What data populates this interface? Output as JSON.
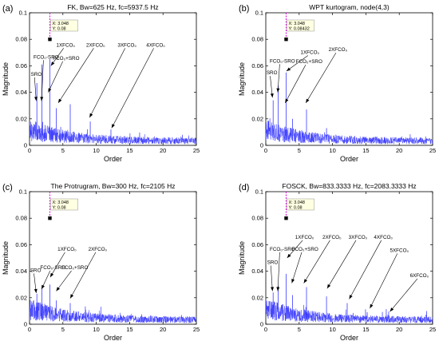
{
  "chart_data": [
    {
      "type": "line",
      "panel_label": "(a)",
      "title": "FK, Bw=625 Hz, fc=5937.5 Hz",
      "xlabel": "Order",
      "ylabel": "Magnitude",
      "xlim": [
        0,
        25
      ],
      "ylim": [
        0,
        0.1
      ],
      "xticks": [
        "0",
        "5",
        "10",
        "15",
        "20",
        "25"
      ],
      "yticks": [
        "0",
        "0.02",
        "0.04",
        "0.06",
        "0.08",
        "0.1"
      ],
      "series_color": "#3b3bff",
      "peaks": [
        {
          "x": 1.1,
          "y": 0.047
        },
        {
          "x": 1.85,
          "y": 0.061
        },
        {
          "x": 3.05,
          "y": 0.065
        },
        {
          "x": 4.0,
          "y": 0.028
        },
        {
          "x": 6.1,
          "y": 0.031
        },
        {
          "x": 9.1,
          "y": 0.018
        },
        {
          "x": 12.2,
          "y": 0.012
        }
      ],
      "cursor": {
        "x": 3.048,
        "y": 0.08,
        "text_x": "X: 3.048",
        "text_y": "Y: 0.08"
      },
      "annotations": [
        {
          "text": "SRO",
          "x": 0.2,
          "y": 0.0525,
          "ax": 1.0,
          "ay": 0.0335
        },
        {
          "text": "FCO₀-SRO",
          "x": 0.6,
          "y": 0.0655,
          "ax": 1.8,
          "ay": 0.0335
        },
        {
          "text": "1XFCO₀",
          "x": 4.0,
          "y": 0.0745,
          "ax": 3.2,
          "ay": 0.06
        },
        {
          "text": "FCO₀+SRO",
          "x": 3.5,
          "y": 0.0645,
          "ax": 2.8,
          "ay": 0.04
        },
        {
          "text": "2XFCO₀",
          "x": 8.5,
          "y": 0.0745,
          "ax": 4.3,
          "ay": 0.032
        },
        {
          "text": "3XFCO₀",
          "x": 13.2,
          "y": 0.0745,
          "ax": 9.0,
          "ay": 0.021
        },
        {
          "text": "4XFCO₀",
          "x": 17.5,
          "y": 0.0745,
          "ax": 12.3,
          "ay": 0.013
        }
      ]
    },
    {
      "type": "line",
      "panel_label": "(b)",
      "title": "WPT kurtogram, node(4,3)",
      "xlabel": "Order",
      "ylabel": "Magnitude",
      "xlim": [
        0,
        25
      ],
      "ylim": [
        0,
        0.1
      ],
      "xticks": [
        "0",
        "5",
        "10",
        "15",
        "20",
        "25"
      ],
      "yticks": [
        "0",
        "0.02",
        "0.04",
        "0.06",
        "0.08",
        "0.1"
      ],
      "series_color": "#3b3bff",
      "peaks": [
        {
          "x": 1.1,
          "y": 0.034
        },
        {
          "x": 1.85,
          "y": 0.045
        },
        {
          "x": 3.05,
          "y": 0.055
        },
        {
          "x": 4.0,
          "y": 0.02
        },
        {
          "x": 6.1,
          "y": 0.027
        },
        {
          "x": 9.1,
          "y": 0.013
        }
      ],
      "cursor": {
        "x": 3.048,
        "y": 0.08,
        "text_x": "X: 3.048",
        "text_y": "Y: 0.08432"
      },
      "annotations": [
        {
          "text": "SRO",
          "x": 0.1,
          "y": 0.0535,
          "ax": 1.0,
          "ay": 0.036
        },
        {
          "text": "FCO₀-SRO",
          "x": 0.6,
          "y": 0.0625,
          "ax": 1.8,
          "ay": 0.04
        },
        {
          "text": "1XFCO₀",
          "x": 5.2,
          "y": 0.069,
          "ax": 3.1,
          "ay": 0.056
        },
        {
          "text": "FCO₀+SRO",
          "x": 4.5,
          "y": 0.062,
          "ax": 2.9,
          "ay": 0.032
        },
        {
          "text": "2XFCO₀",
          "x": 9.4,
          "y": 0.071,
          "ax": 6.0,
          "ay": 0.032
        }
      ]
    },
    {
      "type": "line",
      "panel_label": "(c)",
      "title": "The Protrugram, Bw=300 Hz, fc=2105 Hz",
      "xlabel": "Order",
      "ylabel": "Magnitude",
      "xlim": [
        0,
        25
      ],
      "ylim": [
        0,
        0.1
      ],
      "xticks": [
        "0",
        "5",
        "10",
        "15",
        "20",
        "25"
      ],
      "yticks": [
        "0",
        "0.02",
        "0.04",
        "0.06",
        "0.08",
        "0.1"
      ],
      "series_color": "#3b3bff",
      "peaks": [
        {
          "x": 1.1,
          "y": 0.023
        },
        {
          "x": 1.85,
          "y": 0.028
        },
        {
          "x": 3.05,
          "y": 0.03
        },
        {
          "x": 4.0,
          "y": 0.018
        },
        {
          "x": 6.1,
          "y": 0.016
        }
      ],
      "cursor": {
        "x": 3.048,
        "y": 0.08,
        "text_x": "X: 3.048",
        "text_y": "Y: 0.08"
      },
      "annotations": [
        {
          "text": "SRO",
          "x": 0.1,
          "y": 0.0395,
          "ax": 1.0,
          "ay": 0.0235
        },
        {
          "text": "FCO₀-SRO",
          "x": 1.6,
          "y": 0.0415,
          "ax": 1.8,
          "ay": 0.0265
        },
        {
          "text": "1XFCO₀",
          "x": 4.2,
          "y": 0.0555,
          "ax": 3.1,
          "ay": 0.0355
        },
        {
          "text": "FCO₀+SRO",
          "x": 4.8,
          "y": 0.0415,
          "ax": 4.0,
          "ay": 0.025
        },
        {
          "text": "2XFCO₀",
          "x": 8.8,
          "y": 0.0555,
          "ax": 6.1,
          "ay": 0.0195
        }
      ]
    },
    {
      "type": "line",
      "panel_label": "(d)",
      "title": "FOSCK, Bw=833.3333 Hz, fc=2083.3333 Hz",
      "xlabel": "Order",
      "ylabel": "Magnitude",
      "xlim": [
        0,
        25
      ],
      "ylim": [
        0,
        0.1
      ],
      "xticks": [
        "0",
        "5",
        "10",
        "15",
        "20",
        "25"
      ],
      "yticks": [
        "0",
        "0.02",
        "0.04",
        "0.06",
        "0.08",
        "0.1"
      ],
      "series_color": "#3b3bff",
      "peaks": [
        {
          "x": 1.1,
          "y": 0.024
        },
        {
          "x": 1.85,
          "y": 0.029
        },
        {
          "x": 3.05,
          "y": 0.038
        },
        {
          "x": 4.0,
          "y": 0.022
        },
        {
          "x": 6.1,
          "y": 0.028
        },
        {
          "x": 9.1,
          "y": 0.021
        },
        {
          "x": 12.2,
          "y": 0.016
        },
        {
          "x": 15.2,
          "y": 0.009
        },
        {
          "x": 18.3,
          "y": 0.007
        }
      ],
      "cursor": {
        "x": 3.048,
        "y": 0.08,
        "text_x": "X: 3.048",
        "text_y": "Y: 0.08"
      },
      "annotations": [
        {
          "text": "SRO",
          "x": 0.2,
          "y": 0.0455,
          "ax": 1.0,
          "ay": 0.025
        },
        {
          "text": "FCO₀-SRO",
          "x": 0.6,
          "y": 0.0555,
          "ax": 1.8,
          "ay": 0.025
        },
        {
          "text": "1XFCO₀",
          "x": 4.4,
          "y": 0.0645,
          "ax": 3.2,
          "ay": 0.05
        },
        {
          "text": "FCO₀+SRO",
          "x": 3.9,
          "y": 0.0555,
          "ax": 3.9,
          "ay": 0.031
        },
        {
          "text": "2XFCO₀",
          "x": 8.5,
          "y": 0.0645,
          "ax": 5.7,
          "ay": 0.031
        },
        {
          "text": "3XFCO₀",
          "x": 12.4,
          "y": 0.0645,
          "ax": 9.2,
          "ay": 0.027
        },
        {
          "text": "4XFCO₀",
          "x": 16.2,
          "y": 0.0645,
          "ax": 12.5,
          "ay": 0.019
        },
        {
          "text": "5XFCO₀",
          "x": 18.6,
          "y": 0.0545,
          "ax": 15.6,
          "ay": 0.012
        },
        {
          "text": "6XFCO₀",
          "x": 21.6,
          "y": 0.0355,
          "ax": 18.6,
          "ay": 0.0095
        }
      ]
    }
  ]
}
